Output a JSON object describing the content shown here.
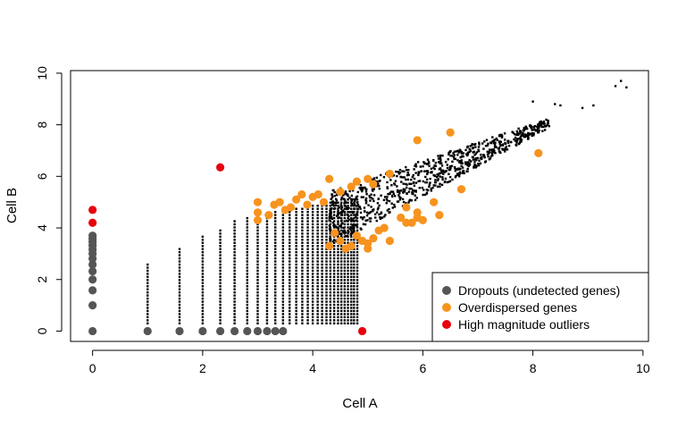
{
  "chart_data": {
    "type": "scatter",
    "title": "",
    "xlabel": "Cell A",
    "ylabel": "Cell B",
    "xlim": [
      -0.4,
      10.1
    ],
    "ylim": [
      -0.4,
      10.1
    ],
    "x_ticks": [
      0,
      2,
      4,
      6,
      8,
      10
    ],
    "y_ticks": [
      0,
      2,
      4,
      6,
      8,
      10
    ],
    "grid": false,
    "legend_position": "bottom-right",
    "series": [
      {
        "name": "Dropouts (undetected genes)",
        "color": "#555555",
        "points": [
          [
            0,
            0
          ],
          [
            0,
            1
          ],
          [
            0,
            1.58
          ],
          [
            0,
            2
          ],
          [
            0,
            2.32
          ],
          [
            0,
            2.58
          ],
          [
            0,
            2.81
          ],
          [
            0,
            3
          ],
          [
            0,
            3.17
          ],
          [
            0,
            3.32
          ],
          [
            0,
            3.46
          ],
          [
            0,
            3.58
          ],
          [
            0,
            3.7
          ],
          [
            1,
            0
          ],
          [
            1.58,
            0
          ],
          [
            2,
            0
          ],
          [
            2.32,
            0
          ],
          [
            2.58,
            0
          ],
          [
            2.81,
            0
          ],
          [
            3,
            0
          ],
          [
            3.17,
            0
          ],
          [
            3.32,
            0
          ],
          [
            3.46,
            0
          ]
        ]
      },
      {
        "name": "Overdispersed genes",
        "color": "#f7931e",
        "points": [
          [
            3.0,
            5.0
          ],
          [
            3.0,
            4.6
          ],
          [
            3.0,
            4.3
          ],
          [
            3.2,
            4.5
          ],
          [
            3.3,
            4.9
          ],
          [
            3.4,
            5.0
          ],
          [
            3.5,
            4.7
          ],
          [
            3.6,
            4.8
          ],
          [
            3.7,
            5.1
          ],
          [
            3.8,
            5.3
          ],
          [
            3.9,
            4.9
          ],
          [
            4.0,
            5.2
          ],
          [
            4.1,
            5.3
          ],
          [
            4.2,
            5.0
          ],
          [
            4.3,
            5.9
          ],
          [
            4.5,
            5.4
          ],
          [
            4.7,
            5.6
          ],
          [
            4.8,
            5.8
          ],
          [
            5.0,
            5.9
          ],
          [
            5.1,
            5.7
          ],
          [
            5.4,
            6.1
          ],
          [
            5.7,
            4.8
          ],
          [
            5.9,
            4.6
          ],
          [
            5.9,
            7.4
          ],
          [
            6.2,
            5.0
          ],
          [
            6.5,
            7.7
          ],
          [
            6.7,
            5.5
          ],
          [
            8.1,
            6.9
          ],
          [
            4.3,
            3.3
          ],
          [
            4.5,
            3.5
          ],
          [
            4.6,
            3.2
          ],
          [
            4.7,
            3.3
          ],
          [
            4.8,
            3.7
          ],
          [
            4.9,
            3.5
          ],
          [
            5.0,
            3.4
          ],
          [
            5.1,
            3.6
          ],
          [
            5.2,
            3.9
          ],
          [
            5.3,
            4.0
          ],
          [
            5.4,
            3.5
          ],
          [
            5.6,
            4.4
          ],
          [
            5.7,
            4.2
          ],
          [
            5.8,
            4.2
          ],
          [
            5.9,
            4.4
          ],
          [
            6.0,
            4.3
          ],
          [
            6.3,
            4.5
          ],
          [
            4.4,
            3.8
          ],
          [
            5.0,
            3.2
          ]
        ]
      },
      {
        "name": "High magnitude outliers",
        "color": "#e8000b",
        "points": [
          [
            0,
            4.7
          ],
          [
            0,
            4.2
          ],
          [
            2.32,
            6.35
          ],
          [
            4.9,
            0
          ]
        ]
      },
      {
        "name": "",
        "color": "#000000",
        "points": []
      }
    ]
  },
  "legend": {
    "items": [
      {
        "label": "Dropouts (undetected genes)",
        "color": "#555555"
      },
      {
        "label": "Overdispersed genes",
        "color": "#f7931e"
      },
      {
        "label": "High magnitude outliers",
        "color": "#e8000b"
      }
    ]
  }
}
